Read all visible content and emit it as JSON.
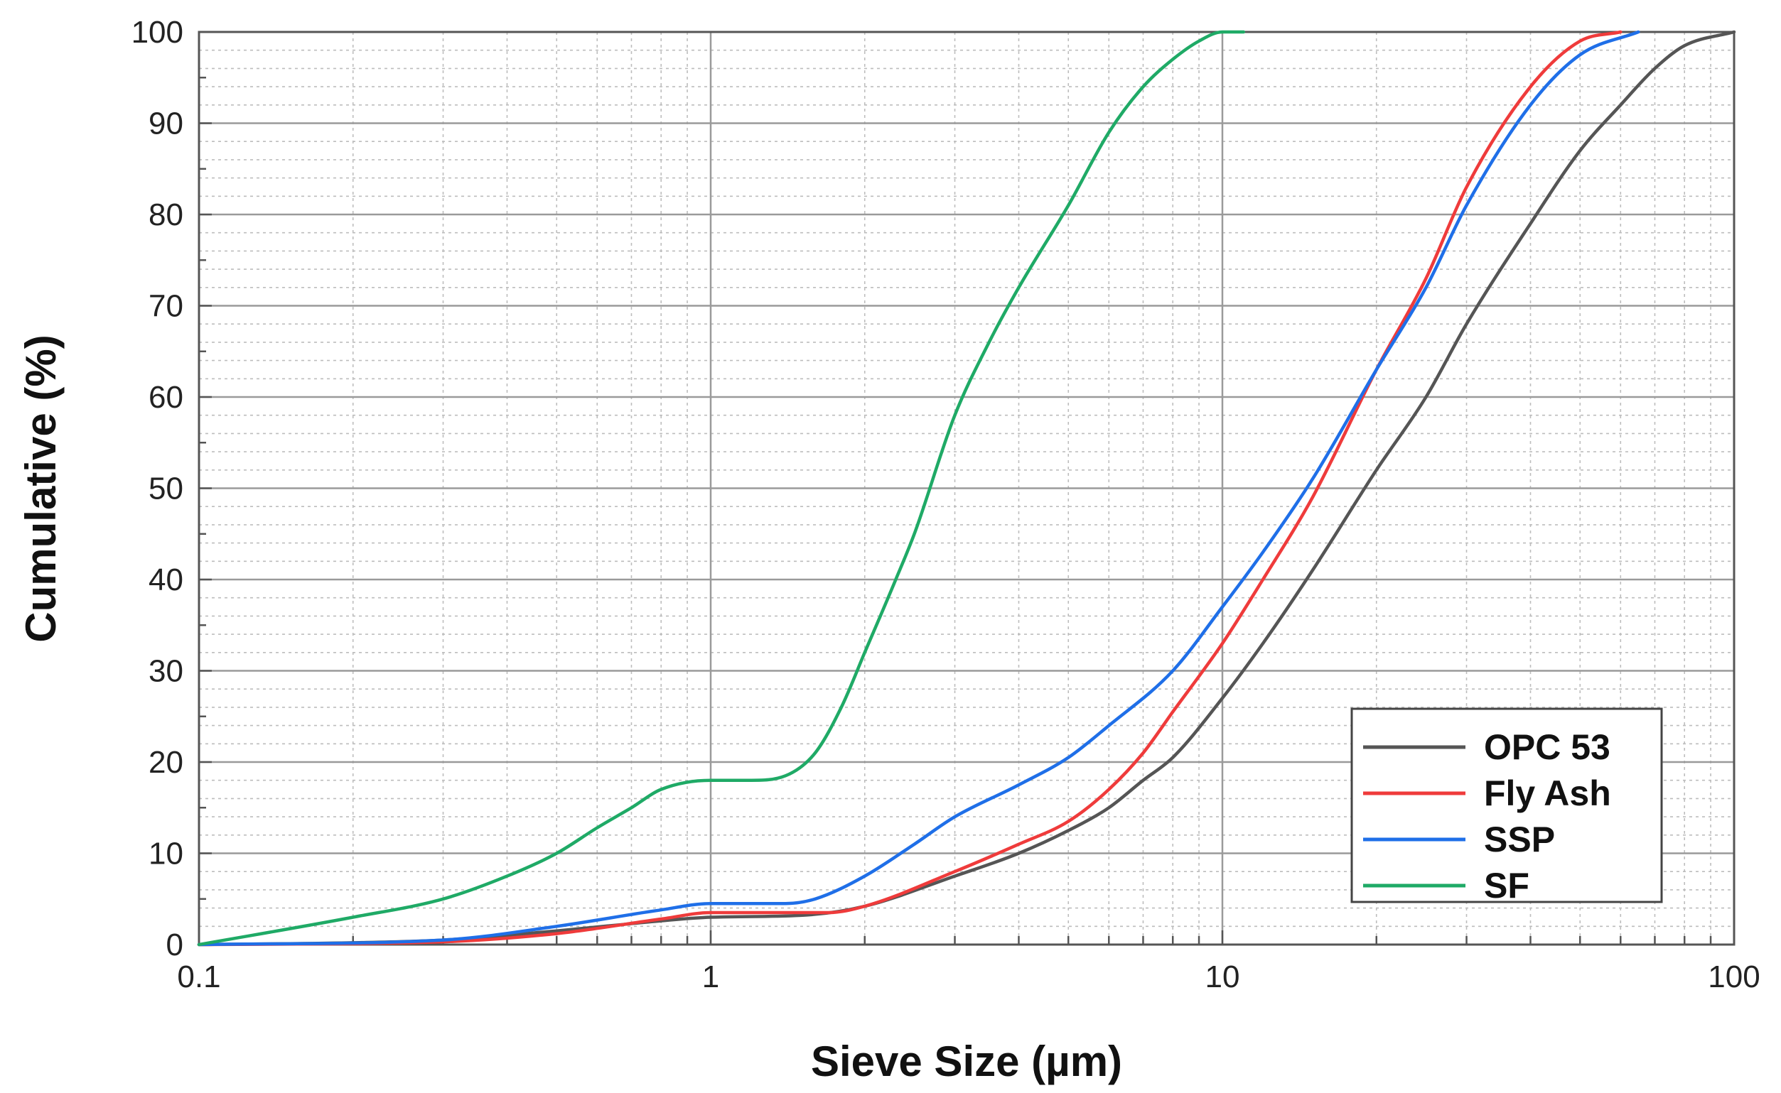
{
  "chart_data": {
    "type": "line",
    "title": "",
    "xlabel": "Sieve Size (µm)",
    "ylabel": "Cumulative (%)",
    "xscale": "log",
    "xlim": [
      0.1,
      100
    ],
    "ylim": [
      0,
      100
    ],
    "x_ticks": [
      0.1,
      1,
      10,
      100
    ],
    "x_tick_labels": [
      "0.1",
      "1",
      "10",
      "100"
    ],
    "y_ticks": [
      0,
      10,
      20,
      30,
      40,
      50,
      60,
      70,
      80,
      90,
      100
    ],
    "y_tick_labels": [
      "0",
      "10",
      "20",
      "30",
      "40",
      "50",
      "60",
      "70",
      "80",
      "90",
      "100"
    ],
    "grid": true,
    "legend_position": "bottom-right",
    "series": [
      {
        "name": "OPC 53",
        "color": "#555555",
        "points": [
          [
            0.1,
            0
          ],
          [
            0.2,
            0.2
          ],
          [
            0.3,
            0.5
          ],
          [
            0.5,
            1.5
          ],
          [
            0.8,
            2.6
          ],
          [
            1,
            3
          ],
          [
            1.5,
            3.2
          ],
          [
            2,
            4.2
          ],
          [
            3,
            7.5
          ],
          [
            4,
            10
          ],
          [
            5,
            12.5
          ],
          [
            6,
            15
          ],
          [
            7,
            18
          ],
          [
            8,
            20.5
          ],
          [
            10,
            27
          ],
          [
            12,
            33
          ],
          [
            15,
            41
          ],
          [
            20,
            52
          ],
          [
            25,
            60
          ],
          [
            30,
            68
          ],
          [
            40,
            79
          ],
          [
            50,
            87
          ],
          [
            60,
            92
          ],
          [
            70,
            96
          ],
          [
            80,
            98.5
          ],
          [
            100,
            100
          ]
        ]
      },
      {
        "name": "Fly Ash",
        "color": "#ef3b3b",
        "points": [
          [
            0.1,
            0
          ],
          [
            0.3,
            0.3
          ],
          [
            0.5,
            1.2
          ],
          [
            0.8,
            2.8
          ],
          [
            1,
            3.5
          ],
          [
            1.5,
            3.5
          ],
          [
            1.7,
            3.5
          ],
          [
            2,
            4.2
          ],
          [
            3,
            8
          ],
          [
            4,
            11
          ],
          [
            5,
            13.5
          ],
          [
            6,
            17
          ],
          [
            7,
            21
          ],
          [
            8,
            25.5
          ],
          [
            10,
            33
          ],
          [
            12,
            40
          ],
          [
            15,
            49
          ],
          [
            20,
            63
          ],
          [
            25,
            73
          ],
          [
            30,
            83
          ],
          [
            40,
            94
          ],
          [
            50,
            99
          ],
          [
            60,
            100
          ]
        ]
      },
      {
        "name": "SSP",
        "color": "#1f6fe8",
        "points": [
          [
            0.1,
            0
          ],
          [
            0.3,
            0.5
          ],
          [
            0.5,
            2
          ],
          [
            0.8,
            3.8
          ],
          [
            1,
            4.5
          ],
          [
            1.4,
            4.5
          ],
          [
            1.6,
            5
          ],
          [
            2,
            7.5
          ],
          [
            2.5,
            11
          ],
          [
            3,
            14
          ],
          [
            4,
            17.5
          ],
          [
            5,
            20.5
          ],
          [
            6,
            24
          ],
          [
            8,
            30
          ],
          [
            10,
            37
          ],
          [
            12,
            43
          ],
          [
            15,
            51
          ],
          [
            20,
            63
          ],
          [
            25,
            72
          ],
          [
            30,
            81
          ],
          [
            40,
            92
          ],
          [
            50,
            97.5
          ],
          [
            65,
            100
          ]
        ]
      },
      {
        "name": "SF",
        "color": "#1faa66",
        "points": [
          [
            0.1,
            0
          ],
          [
            0.2,
            3
          ],
          [
            0.3,
            5
          ],
          [
            0.4,
            7.5
          ],
          [
            0.5,
            10
          ],
          [
            0.6,
            12.8
          ],
          [
            0.7,
            15
          ],
          [
            0.8,
            17
          ],
          [
            1,
            18
          ],
          [
            1.2,
            18
          ],
          [
            1.4,
            18.5
          ],
          [
            1.6,
            21
          ],
          [
            1.8,
            26
          ],
          [
            2,
            32
          ],
          [
            2.3,
            40
          ],
          [
            2.5,
            45
          ],
          [
            3,
            58
          ],
          [
            3.5,
            66
          ],
          [
            4,
            72
          ],
          [
            5,
            81
          ],
          [
            6,
            89
          ],
          [
            7,
            94
          ],
          [
            8,
            97
          ],
          [
            9,
            99
          ],
          [
            10,
            100
          ],
          [
            11,
            100
          ]
        ]
      }
    ]
  }
}
